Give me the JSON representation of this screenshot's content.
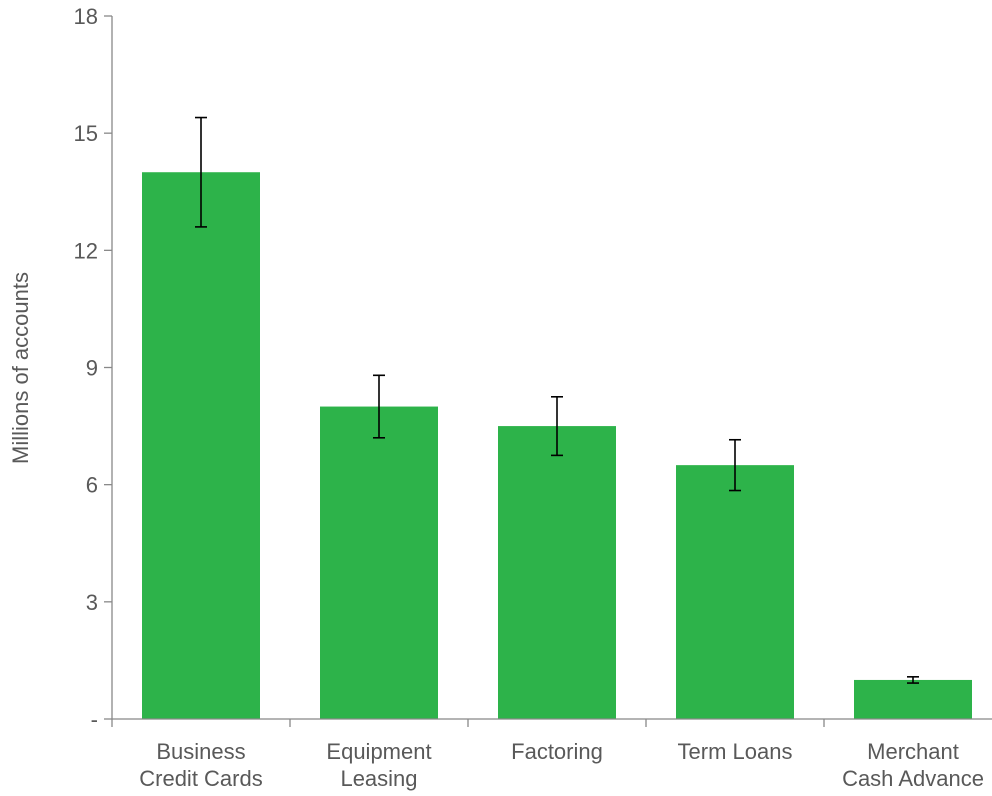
{
  "chart_data": {
    "type": "bar",
    "title": "",
    "xlabel": "",
    "ylabel": "Millions of accounts",
    "ylim": [
      0,
      18
    ],
    "yticks": [
      0,
      3,
      6,
      9,
      12,
      15,
      18
    ],
    "ytick_labels": [
      "-",
      "3",
      "6",
      "9",
      "12",
      "15",
      "18"
    ],
    "grid": false,
    "legend": "none",
    "categories": [
      [
        "Business",
        "Credit Cards"
      ],
      [
        "Equipment",
        "Leasing"
      ],
      [
        "Factoring"
      ],
      [
        "Term Loans"
      ],
      [
        "Merchant",
        "Cash Advance"
      ]
    ],
    "values": [
      14.0,
      8.0,
      7.5,
      6.5,
      1.0
    ],
    "error_low": [
      12.6,
      7.2,
      6.75,
      5.85,
      0.92
    ],
    "error_high": [
      15.4,
      8.8,
      8.25,
      7.15,
      1.08
    ],
    "bar_color": "#2db34a",
    "error_color": "#000000",
    "axis_color": "#888888",
    "text_color": "#595959"
  }
}
